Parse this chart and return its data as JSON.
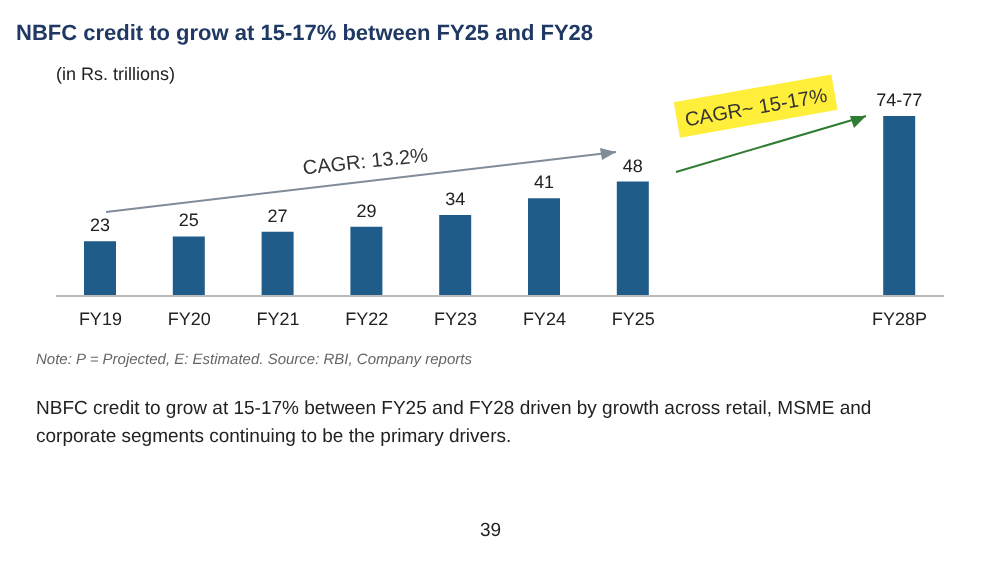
{
  "chart_data": {
    "type": "bar",
    "title": "NBFC credit to grow at 15-17% between FY25 and FY28",
    "subtitle": "(in Rs. trillions)",
    "categories": [
      "FY19",
      "FY20",
      "FY21",
      "FY22",
      "FY23",
      "FY24",
      "FY25",
      null,
      null,
      "FY28P"
    ],
    "values": [
      23,
      25,
      27,
      29,
      34,
      41,
      48,
      null,
      null,
      75.5
    ],
    "value_labels": [
      "23",
      "25",
      "27",
      "29",
      "34",
      "41",
      "48",
      null,
      null,
      "74-77"
    ],
    "color": "#1f5c8a",
    "annotations": [
      "CAGR: 13.2%",
      "CAGR~ 15-17%",
      "Note: P = Projected, E: Estimated. Source: RBI, Company reports",
      "NBFC credit to grow at 15-17% between FY25 and FY28 driven by growth across retail, MSME and corporate segments continuing to be the primary drivers.",
      "39"
    ]
  }
}
